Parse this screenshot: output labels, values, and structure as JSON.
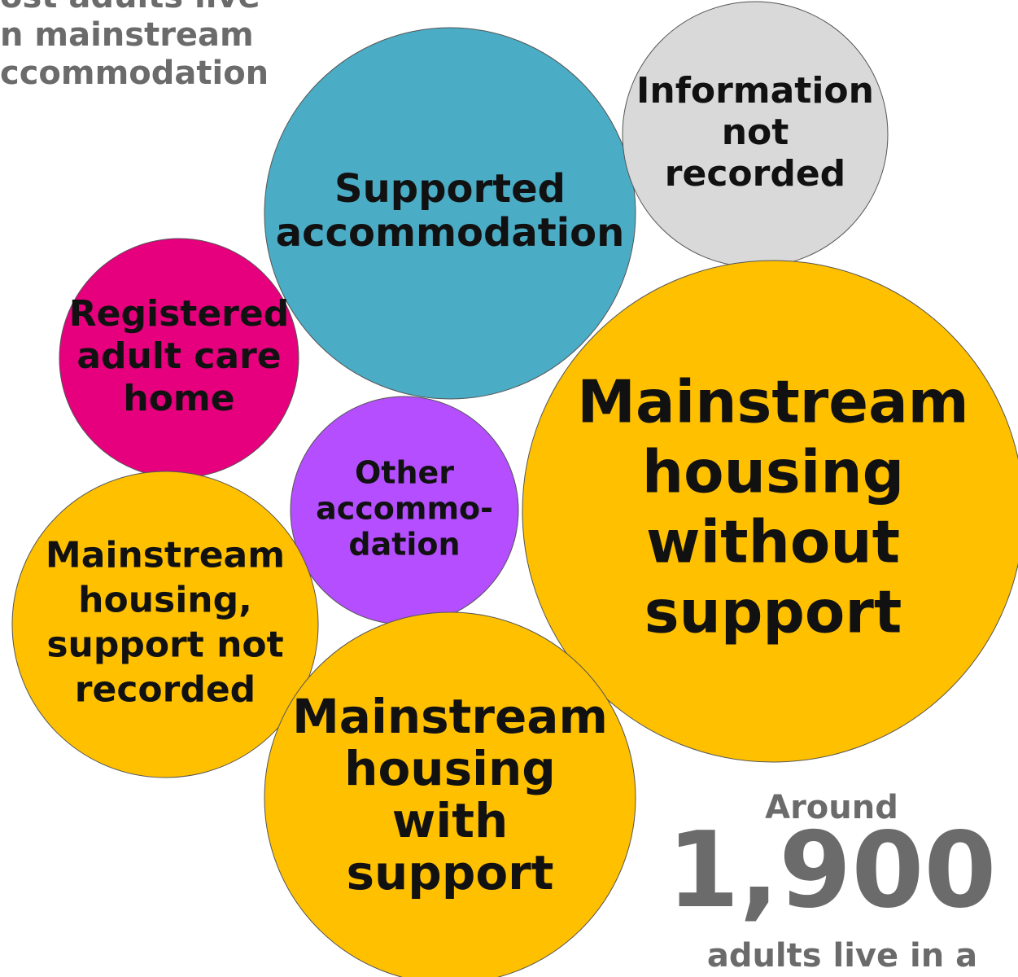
{
  "title_lines": [
    "ost adults live",
    "n mainstream",
    "ccommodation"
  ],
  "nodes": [
    {
      "label": [
        "Supported",
        "accommodation"
      ],
      "color": "#4bacc6"
    },
    {
      "label": [
        "Information",
        "not",
        "recorded"
      ],
      "color": "#d9d9d9"
    },
    {
      "label": [
        "Registered",
        "adult care",
        "home"
      ],
      "color": "#e6007e"
    },
    {
      "label": [
        "Other",
        "accommo-",
        "dation"
      ],
      "color": "#b44eff"
    },
    {
      "label": [
        "Mainstream",
        "housing",
        "without",
        "support"
      ],
      "color": "#ffc000"
    },
    {
      "label": [
        "Mainstream",
        "housing,",
        "support not",
        "recorded"
      ],
      "color": "#ffc000"
    },
    {
      "label": [
        "Mainstream",
        "housing",
        "with",
        "support"
      ],
      "color": "#ffc000"
    }
  ],
  "callout": {
    "pre": "Around",
    "number": "1,900",
    "post": "adults live in a"
  }
}
